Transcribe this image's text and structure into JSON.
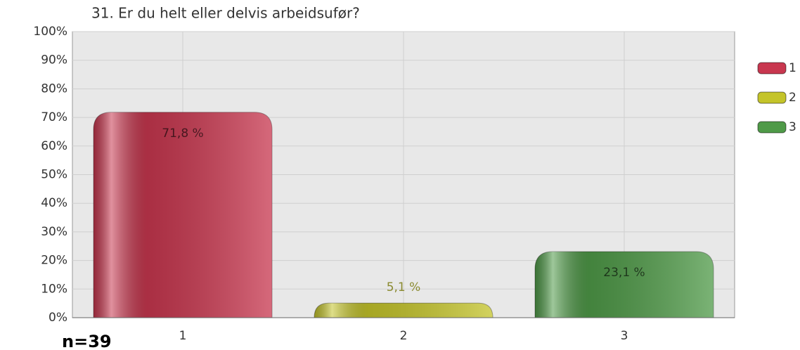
{
  "chart_data": {
    "type": "bar",
    "title": "31. Er du helt eller delvis arbeidsufør?",
    "categories": [
      "1",
      "2",
      "3"
    ],
    "values": [
      71.8,
      5.1,
      23.1
    ],
    "value_labels": [
      "71,8 %",
      "5,1 %",
      "23,1 %"
    ],
    "colors": [
      "#c8374f",
      "#c4c42a",
      "#4f9a48"
    ],
    "ylim": [
      0,
      100
    ],
    "yticks": [
      {
        "value": 0,
        "label": "0%"
      },
      {
        "value": 10,
        "label": "10%"
      },
      {
        "value": 20,
        "label": "20%"
      },
      {
        "value": 30,
        "label": "30%"
      },
      {
        "value": 40,
        "label": "40%"
      },
      {
        "value": 50,
        "label": "50%"
      },
      {
        "value": 60,
        "label": "60%"
      },
      {
        "value": 70,
        "label": "70%"
      },
      {
        "value": 80,
        "label": "80%"
      },
      {
        "value": 90,
        "label": "90%"
      },
      {
        "value": 100,
        "label": "100%"
      }
    ],
    "grid": true,
    "legend": "right",
    "annotation": "n=39"
  }
}
